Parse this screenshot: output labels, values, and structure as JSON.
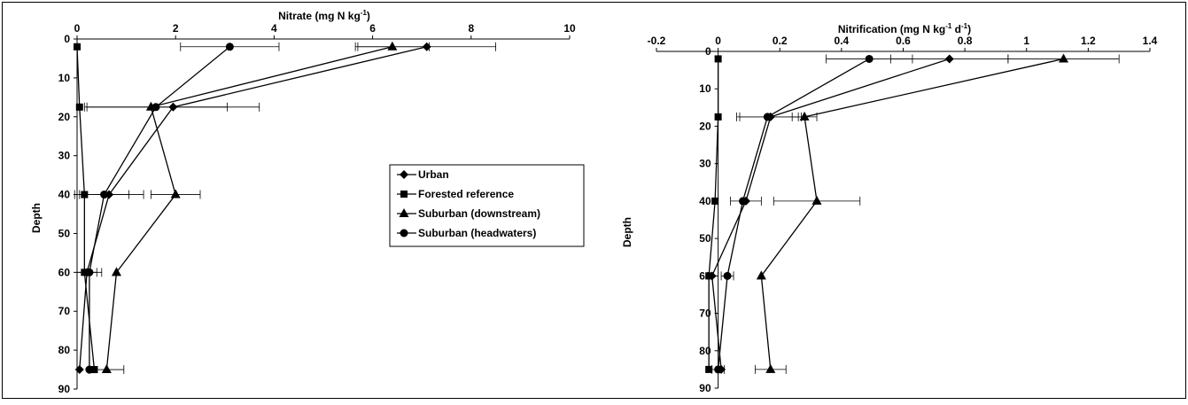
{
  "chart_data": [
    {
      "type": "line",
      "title": "",
      "xlabel": "Nitrate (mg N kg",
      "xlabel_sup": "-1",
      "xlabel_end": ")",
      "ylabel": "Depth",
      "x_axis_position": "top",
      "y_inverted": true,
      "xlim": [
        0,
        10
      ],
      "ylim": [
        0,
        90
      ],
      "x_ticks": [
        "0",
        "2",
        "4",
        "6",
        "8",
        "10"
      ],
      "y_ticks": [
        "0",
        "10",
        "20",
        "30",
        "40",
        "50",
        "60",
        "70",
        "80",
        "90"
      ],
      "grid": false,
      "legend": "right-center",
      "series": [
        {
          "name": "Urban",
          "marker": "diamond",
          "points": [
            [
              7.1,
              2
            ],
            [
              1.95,
              17.5
            ],
            [
              0.65,
              40
            ],
            [
              0.2,
              60
            ],
            [
              0.05,
              85
            ]
          ],
          "err": [
            1.4,
            1.75,
            0.7,
            0.2,
            0.0
          ]
        },
        {
          "name": "Forested reference",
          "marker": "square",
          "points": [
            [
              0.0,
              2
            ],
            [
              0.05,
              17.5
            ],
            [
              0.15,
              40
            ],
            [
              0.15,
              60
            ],
            [
              0.35,
              85
            ]
          ],
          "err": [
            0.0,
            0.0,
            0.0,
            0.0,
            0.0
          ]
        },
        {
          "name": "Suburban (downstream)",
          "marker": "triangle",
          "points": [
            [
              6.4,
              2
            ],
            [
              1.5,
              17.5
            ],
            [
              2.0,
              40
            ],
            [
              0.8,
              60
            ],
            [
              0.6,
              85
            ]
          ],
          "err": [
            0.75,
            0.0,
            0.5,
            0.0,
            0.35
          ]
        },
        {
          "name": "Suburban (headwaters)",
          "marker": "circle",
          "points": [
            [
              3.1,
              2
            ],
            [
              1.6,
              17.5
            ],
            [
              0.55,
              40
            ],
            [
              0.25,
              60
            ],
            [
              0.25,
              85
            ]
          ],
          "err": [
            1.0,
            1.45,
            0.5,
            0.25,
            0.0
          ]
        }
      ]
    },
    {
      "type": "line",
      "title": "",
      "xlabel": "Nitrification (mg N kg",
      "xlabel_sup": "-1",
      "xlabel_mid": " d",
      "xlabel_sup2": "-1",
      "xlabel_end": ")",
      "ylabel": "Depth",
      "x_axis_position": "top",
      "y_inverted": true,
      "xlim": [
        -0.2,
        1.4
      ],
      "ylim": [
        0,
        90
      ],
      "x_ticks": [
        "-0.2",
        "0",
        "0.2",
        "0.4",
        "0.6",
        "0.8",
        "1",
        "1.2",
        "1.4"
      ],
      "y_ticks": [
        "0",
        "10",
        "20",
        "30",
        "40",
        "50",
        "60",
        "70",
        "80",
        "90"
      ],
      "grid": false,
      "series": [
        {
          "name": "Urban",
          "marker": "diamond",
          "points": [
            [
              0.75,
              2
            ],
            [
              0.17,
              17.5
            ],
            [
              0.09,
              40
            ],
            [
              -0.02,
              60
            ],
            [
              0.01,
              85
            ]
          ],
          "err": [
            0.19,
            0.1,
            0.05,
            0.0,
            0.0
          ]
        },
        {
          "name": "Forested reference",
          "marker": "square",
          "points": [
            [
              0.0,
              2
            ],
            [
              0.0,
              17.5
            ],
            [
              -0.01,
              40
            ],
            [
              -0.03,
              60
            ],
            [
              -0.03,
              85
            ]
          ],
          "err": [
            0.0,
            0.0,
            0.0,
            0.0,
            0.0
          ]
        },
        {
          "name": "Suburban (downstream)",
          "marker": "triangle",
          "points": [
            [
              1.12,
              2
            ],
            [
              0.28,
              17.5
            ],
            [
              0.32,
              40
            ],
            [
              0.14,
              60
            ],
            [
              0.17,
              85
            ]
          ],
          "err": [
            0.18,
            0.04,
            0.14,
            0.0,
            0.05
          ]
        },
        {
          "name": "Suburban (headwaters)",
          "marker": "circle",
          "points": [
            [
              0.49,
              2
            ],
            [
              0.16,
              17.5
            ],
            [
              0.08,
              40
            ],
            [
              0.03,
              60
            ],
            [
              0.0,
              85
            ]
          ],
          "err": [
            0.14,
            0.1,
            0.0,
            0.02,
            0.02
          ]
        }
      ]
    }
  ]
}
